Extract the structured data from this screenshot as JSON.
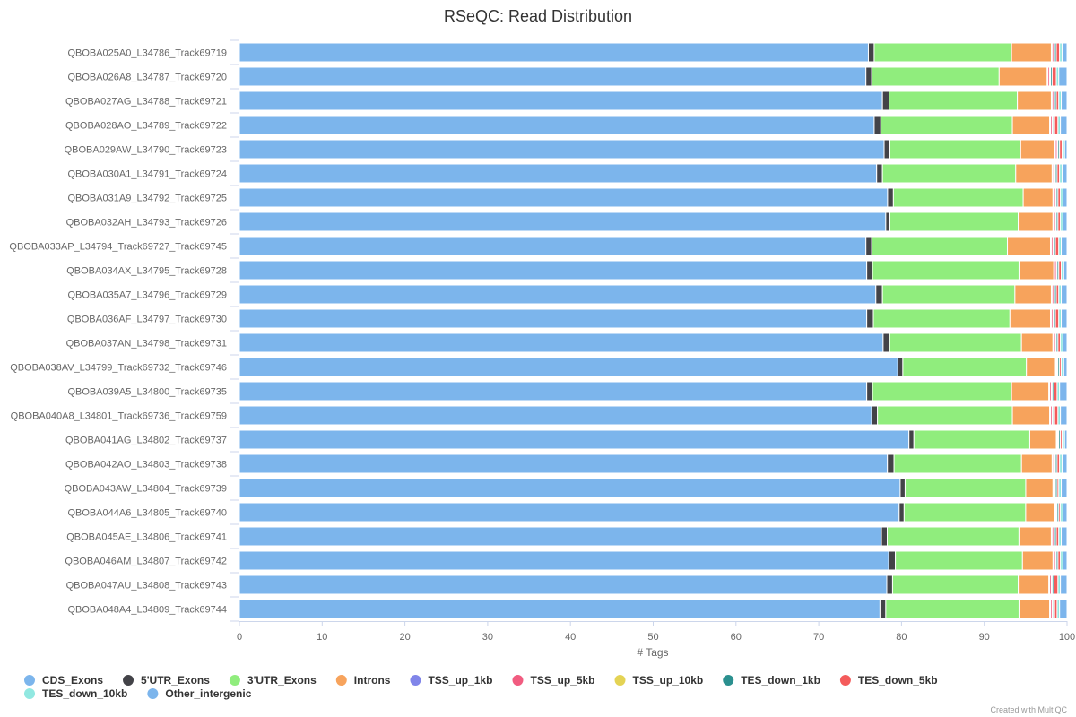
{
  "chart_data": {
    "type": "bar",
    "orientation": "horizontal",
    "stacked": true,
    "percent": true,
    "title": "RSeQC: Read Distribution",
    "xlabel": "# Tags",
    "ylabel": "",
    "xlim": [
      0,
      100
    ],
    "xticks": [
      "0",
      "10",
      "20",
      "30",
      "40",
      "50",
      "60",
      "70",
      "80",
      "90",
      "100"
    ],
    "grid": false,
    "legend_position": "bottom-left",
    "credit": "Created with MultiQC",
    "categories": [
      "QBOBA025A0_L34786_Track69719",
      "QBOBA026A8_L34787_Track69720",
      "QBOBA027AG_L34788_Track69721",
      "QBOBA028AO_L34789_Track69722",
      "QBOBA029AW_L34790_Track69723",
      "QBOBA030A1_L34791_Track69724",
      "QBOBA031A9_L34792_Track69725",
      "QBOBA032AH_L34793_Track69726",
      "QBOBA033AP_L34794_Track69727_Track69745",
      "QBOBA034AX_L34795_Track69728",
      "QBOBA035A7_L34796_Track69729",
      "QBOBA036AF_L34797_Track69730",
      "QBOBA037AN_L34798_Track69731",
      "QBOBA038AV_L34799_Track69732_Track69746",
      "QBOBA039A5_L34800_Track69735",
      "QBOBA040A8_L34801_Track69736_Track69759",
      "QBOBA041AG_L34802_Track69737",
      "QBOBA042AO_L34803_Track69738",
      "QBOBA043AW_L34804_Track69739",
      "QBOBA044A6_L34805_Track69740",
      "QBOBA045AE_L34806_Track69741",
      "QBOBA046AM_L34807_Track69742",
      "QBOBA047AU_L34808_Track69743",
      "QBOBA048A4_L34809_Track69744"
    ],
    "series": [
      {
        "name": "CDS_Exons",
        "color": "#7cb5ec",
        "values": [
          76.0,
          75.7,
          77.7,
          76.7,
          77.9,
          77.0,
          78.4,
          78.1,
          75.7,
          75.8,
          76.9,
          75.8,
          77.7,
          79.4,
          75.8,
          76.4,
          80.9,
          78.3,
          80.0,
          79.8,
          77.5,
          78.7,
          78.3,
          77.4
        ]
      },
      {
        "name": "5'UTR_Exons",
        "color": "#434348",
        "values": [
          0.7,
          0.7,
          0.8,
          0.8,
          0.7,
          0.7,
          0.7,
          0.5,
          0.7,
          0.7,
          0.8,
          0.8,
          0.8,
          0.6,
          0.7,
          0.7,
          0.6,
          0.8,
          0.6,
          0.6,
          0.7,
          0.8,
          0.7,
          0.7
        ]
      },
      {
        "name": "3'UTR_Exons",
        "color": "#90ed7d",
        "values": [
          16.6,
          15.4,
          15.5,
          15.9,
          15.8,
          16.1,
          15.7,
          15.5,
          16.4,
          17.7,
          16.0,
          16.5,
          15.9,
          14.9,
          16.8,
          16.3,
          14.0,
          15.4,
          14.6,
          14.7,
          15.9,
          15.4,
          15.2,
          16.1
        ]
      },
      {
        "name": "Introns",
        "color": "#f7a35c",
        "values": [
          4.8,
          5.8,
          4.1,
          4.5,
          4.1,
          4.4,
          3.6,
          4.2,
          5.2,
          4.2,
          4.4,
          4.9,
          3.8,
          3.5,
          4.5,
          4.5,
          3.2,
          3.7,
          3.3,
          3.5,
          3.9,
          3.7,
          3.7,
          3.7
        ]
      },
      {
        "name": "TSS_up_1kb",
        "color": "#8085e9",
        "values": [
          0.1,
          0.1,
          0.1,
          0.1,
          0.1,
          0.1,
          0.1,
          0.1,
          0.1,
          0.1,
          0.1,
          0.1,
          0.1,
          0.1,
          0.1,
          0.1,
          0.1,
          0.1,
          0.1,
          0.1,
          0.1,
          0.1,
          0.1,
          0.1
        ]
      },
      {
        "name": "TSS_up_5kb",
        "color": "#f15c80",
        "values": [
          0.2,
          0.2,
          0.2,
          0.2,
          0.2,
          0.2,
          0.2,
          0.2,
          0.2,
          0.2,
          0.2,
          0.2,
          0.2,
          0.1,
          0.2,
          0.2,
          0.1,
          0.2,
          0.1,
          0.1,
          0.2,
          0.2,
          0.2,
          0.2
        ]
      },
      {
        "name": "TSS_up_10kb",
        "color": "#e4d354",
        "values": [
          0.1,
          0.1,
          0.1,
          0.1,
          0.1,
          0.1,
          0.1,
          0.1,
          0.1,
          0.1,
          0.1,
          0.1,
          0.1,
          0.1,
          0.1,
          0.1,
          0.1,
          0.1,
          0.1,
          0.1,
          0.1,
          0.1,
          0.1,
          0.1
        ]
      },
      {
        "name": "TES_down_1kb",
        "color": "#2b908f",
        "values": [
          0.2,
          0.2,
          0.2,
          0.2,
          0.2,
          0.2,
          0.2,
          0.2,
          0.2,
          0.2,
          0.2,
          0.2,
          0.2,
          0.2,
          0.2,
          0.2,
          0.2,
          0.2,
          0.2,
          0.2,
          0.2,
          0.2,
          0.2,
          0.2
        ]
      },
      {
        "name": "TES_down_5kb",
        "color": "#f45b5b",
        "values": [
          0.4,
          0.5,
          0.3,
          0.4,
          0.3,
          0.3,
          0.3,
          0.3,
          0.4,
          0.3,
          0.3,
          0.4,
          0.3,
          0.2,
          0.4,
          0.4,
          0.2,
          0.3,
          0.2,
          0.2,
          0.3,
          0.3,
          0.5,
          0.3
        ]
      },
      {
        "name": "TES_down_10kb",
        "color": "#91e8e1",
        "values": [
          0.3,
          0.3,
          0.3,
          0.3,
          0.3,
          0.3,
          0.3,
          0.3,
          0.3,
          0.3,
          0.3,
          0.3,
          0.3,
          0.3,
          0.3,
          0.3,
          0.3,
          0.3,
          0.3,
          0.3,
          0.3,
          0.3,
          0.3,
          0.3
        ]
      },
      {
        "name": "Other_intergenic",
        "color": "#7cb5ec",
        "values": [
          0.6,
          1.0,
          0.7,
          0.8,
          0.3,
          0.6,
          0.5,
          0.5,
          0.7,
          0.4,
          0.7,
          0.7,
          0.5,
          0.4,
          0.9,
          0.8,
          0.3,
          0.6,
          0.7,
          0.5,
          0.7,
          0.5,
          0.8,
          0.9
        ]
      }
    ]
  }
}
